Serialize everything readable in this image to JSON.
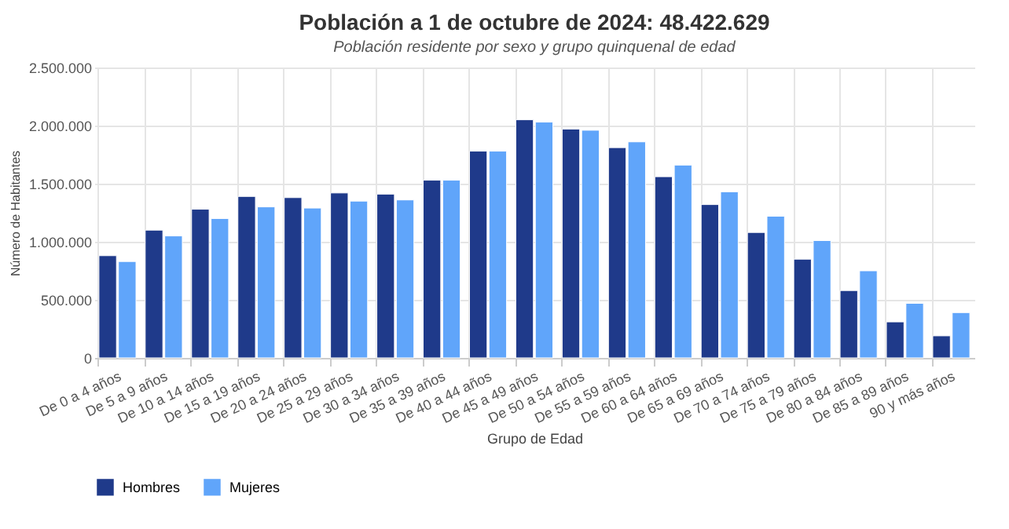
{
  "chart_data": {
    "type": "bar",
    "title": "Población a 1 de octubre de 2024: 48.422.629",
    "subtitle": "Población residente por sexo y grupo quinquenal de edad",
    "xlabel": "Grupo de Edad",
    "ylabel": "Número de Habitantes",
    "categories": [
      "De 0 a 4 años",
      "De 5 a 9 años",
      "De 10 a 14 años",
      "De 15 a 19 años",
      "De 20 a 24 años",
      "De 25 a 29 años",
      "De 30 a 34 años",
      "De 35 a 39 años",
      "De 40 a 44 años",
      "De 45 a 49 años",
      "De 50 a 54 años",
      "De 55 a 59 años",
      "De 60 a 64 años",
      "De 65 a 69 años",
      "De 70 a 74 años",
      "De 75 a 79 años",
      "De 80 a 84 años",
      "De 85 a 89 años",
      "90 y más años"
    ],
    "series": [
      {
        "name": "Hombres",
        "color": "#1f3a8a",
        "values": [
          880000,
          1100000,
          1280000,
          1390000,
          1380000,
          1420000,
          1410000,
          1530000,
          1780000,
          2050000,
          1970000,
          1810000,
          1560000,
          1320000,
          1080000,
          850000,
          580000,
          310000,
          190000
        ]
      },
      {
        "name": "Mujeres",
        "color": "#60a5fa",
        "values": [
          830000,
          1050000,
          1200000,
          1300000,
          1290000,
          1350000,
          1360000,
          1530000,
          1780000,
          2030000,
          1960000,
          1860000,
          1660000,
          1430000,
          1220000,
          1010000,
          750000,
          470000,
          390000
        ]
      }
    ],
    "ylim": [
      0,
      2500000
    ],
    "yticks": [
      {
        "value": 0,
        "label": "0"
      },
      {
        "value": 500000,
        "label": "500.000"
      },
      {
        "value": 1000000,
        "label": "1.000.000"
      },
      {
        "value": 1500000,
        "label": "1.500.000"
      },
      {
        "value": 2000000,
        "label": "2.000.000"
      },
      {
        "value": 2500000,
        "label": "2.500.000"
      }
    ],
    "grid": true,
    "legend": "bottom"
  }
}
